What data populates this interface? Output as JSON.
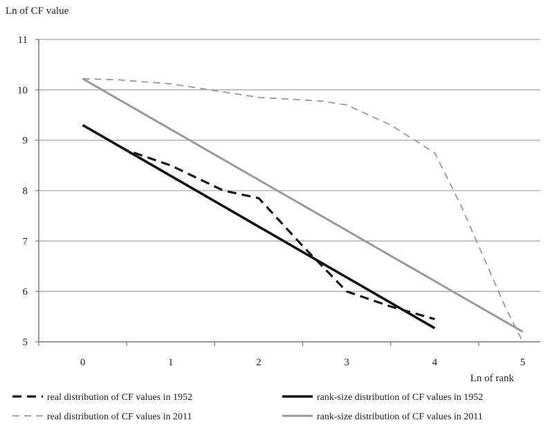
{
  "chart_data": {
    "type": "line",
    "title": "",
    "ylabel": "Ln of CF value",
    "xlabel": "Ln of rank",
    "xlim": [
      -0.5,
      5.2
    ],
    "ylim": [
      5,
      11
    ],
    "xticks": [
      0,
      1,
      2,
      3,
      4,
      5
    ],
    "yticks": [
      5,
      6,
      7,
      8,
      9,
      10,
      11
    ],
    "grid": "horizontal",
    "legend": "bottom",
    "series": [
      {
        "name": "real distribution of CF values in 1952",
        "style": "dashed-thick",
        "color": "#1a1a1a",
        "points": [
          [
            0,
            9.3
          ],
          [
            0.5,
            8.8
          ],
          [
            1,
            8.5
          ],
          [
            1.6,
            8.0
          ],
          [
            2,
            7.85
          ],
          [
            2.5,
            6.9
          ],
          [
            3,
            6.0
          ],
          [
            3.5,
            5.7
          ],
          [
            4,
            5.45
          ]
        ]
      },
      {
        "name": "rank-size distribution of CF values in 1952",
        "style": "solid-thick",
        "color": "#111111",
        "points": [
          [
            0,
            9.3
          ],
          [
            4,
            5.27
          ]
        ]
      },
      {
        "name": "real distribution of CF values in 2011",
        "style": "dashed-thin",
        "color": "#999999",
        "points": [
          [
            0,
            10.22
          ],
          [
            0.4,
            10.2
          ],
          [
            1,
            10.12
          ],
          [
            2,
            9.85
          ],
          [
            2.7,
            9.78
          ],
          [
            3,
            9.7
          ],
          [
            3.5,
            9.3
          ],
          [
            4,
            8.75
          ],
          [
            4.3,
            7.7
          ],
          [
            4.6,
            6.5
          ],
          [
            4.8,
            5.7
          ],
          [
            5,
            5.0
          ]
        ]
      },
      {
        "name": "rank-size distribution of CF values in 2011",
        "style": "solid",
        "color": "#999999",
        "points": [
          [
            0,
            10.22
          ],
          [
            5,
            5.2
          ]
        ]
      }
    ]
  }
}
